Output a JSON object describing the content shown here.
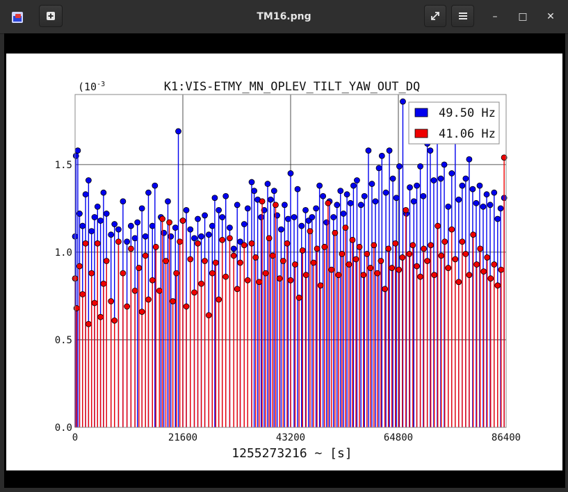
{
  "window": {
    "title": "TM16.png",
    "new_tab_icon": "plus-icon",
    "fullscreen_icon": "expand-icon",
    "menu_icon": "hamburger-icon",
    "minimize_icon": "minimize-icon",
    "maximize_icon": "maximize-icon",
    "close_icon": "close-icon",
    "minimize_glyph": "–",
    "maximize_glyph": "□",
    "close_glyph": "✕"
  },
  "chart_data": {
    "type": "scatter",
    "title": "K1:VIS-ETMY_MN_OPLEV_TILT_YAW_OUT_DQ",
    "xlabel": "1255273216 ~ [s]",
    "ylabel": "",
    "y_exponent_label": "(10",
    "y_exponent_sup": "-3",
    "xlim": [
      0,
      86400
    ],
    "ylim": [
      0,
      1.9
    ],
    "x_ticks": [
      "0",
      "21600",
      "43200",
      "64800",
      "86400"
    ],
    "x_tick_values": [
      0,
      21600,
      43200,
      64800,
      86400
    ],
    "y_ticks": [
      "0.0",
      "0.5",
      "1.0",
      "1.5"
    ],
    "y_tick_values": [
      0.0,
      0.5,
      1.0,
      1.5
    ],
    "grid": true,
    "legend_position": "top-right",
    "series": [
      {
        "name": "49.50 Hz",
        "color": "#0000ee",
        "style": "stem",
        "values": [
          [
            0,
            1.09
          ],
          [
            180,
            1.55
          ],
          [
            540,
            1.58
          ],
          [
            900,
            1.22
          ],
          [
            1500,
            1.15
          ],
          [
            2100,
            1.33
          ],
          [
            2700,
            1.41
          ],
          [
            3300,
            1.12
          ],
          [
            3900,
            1.2
          ],
          [
            4500,
            1.26
          ],
          [
            5100,
            1.18
          ],
          [
            5700,
            1.34
          ],
          [
            6300,
            1.22
          ],
          [
            7200,
            1.1
          ],
          [
            7900,
            1.16
          ],
          [
            8700,
            1.13
          ],
          [
            9600,
            1.29
          ],
          [
            10400,
            1.06
          ],
          [
            11200,
            1.15
          ],
          [
            12000,
            1.08
          ],
          [
            12500,
            1.17
          ],
          [
            13400,
            1.25
          ],
          [
            14100,
            1.09
          ],
          [
            14700,
            1.34
          ],
          [
            15500,
            1.15
          ],
          [
            16000,
            1.38
          ],
          [
            17200,
            1.2
          ],
          [
            17800,
            1.11
          ],
          [
            18600,
            1.29
          ],
          [
            19200,
            1.09
          ],
          [
            20100,
            1.14
          ],
          [
            20700,
            1.69
          ],
          [
            21600,
            1.18
          ],
          [
            22300,
            1.24
          ],
          [
            23100,
            1.13
          ],
          [
            23900,
            1.08
          ],
          [
            24600,
            1.19
          ],
          [
            25300,
            1.09
          ],
          [
            26000,
            1.21
          ],
          [
            26800,
            1.1
          ],
          [
            27500,
            1.15
          ],
          [
            28000,
            1.31
          ],
          [
            28800,
            1.24
          ],
          [
            29500,
            1.2
          ],
          [
            30200,
            1.32
          ],
          [
            31000,
            1.14
          ],
          [
            31800,
            1.02
          ],
          [
            32500,
            1.27
          ],
          [
            33100,
            1.06
          ],
          [
            33900,
            1.16
          ],
          [
            34600,
            1.25
          ],
          [
            35400,
            1.4
          ],
          [
            35900,
            1.35
          ],
          [
            36600,
            1.3
          ],
          [
            37300,
            1.2
          ],
          [
            37900,
            1.24
          ],
          [
            38600,
            1.39
          ],
          [
            39200,
            1.3
          ],
          [
            39900,
            1.35
          ],
          [
            40500,
            1.21
          ],
          [
            41300,
            1.13
          ],
          [
            42000,
            1.27
          ],
          [
            42700,
            1.19
          ],
          [
            43200,
            1.45
          ],
          [
            43900,
            1.2
          ],
          [
            44600,
            1.36
          ],
          [
            45400,
            1.15
          ],
          [
            46200,
            1.24
          ],
          [
            46800,
            1.18
          ],
          [
            47500,
            1.2
          ],
          [
            48300,
            1.25
          ],
          [
            49000,
            1.38
          ],
          [
            49700,
            1.32
          ],
          [
            50400,
            1.17
          ],
          [
            51000,
            1.29
          ],
          [
            51800,
            1.2
          ],
          [
            52500,
            1.27
          ],
          [
            53200,
            1.35
          ],
          [
            53800,
            1.22
          ],
          [
            54500,
            1.33
          ],
          [
            55200,
            1.28
          ],
          [
            55800,
            1.38
          ],
          [
            56500,
            1.41
          ],
          [
            57300,
            1.27
          ],
          [
            58000,
            1.32
          ],
          [
            58800,
            1.58
          ],
          [
            59500,
            1.39
          ],
          [
            60200,
            1.29
          ],
          [
            60900,
            1.48
          ],
          [
            61500,
            1.55
          ],
          [
            62300,
            1.34
          ],
          [
            63000,
            1.58
          ],
          [
            63700,
            1.42
          ],
          [
            64400,
            1.31
          ],
          [
            65000,
            1.49
          ],
          [
            65700,
            1.86
          ],
          [
            66400,
            1.22
          ],
          [
            67100,
            1.37
          ],
          [
            67900,
            1.29
          ],
          [
            68500,
            1.38
          ],
          [
            69200,
            1.49
          ],
          [
            69800,
            1.32
          ],
          [
            70600,
            1.62
          ],
          [
            71200,
            1.58
          ],
          [
            71900,
            1.41
          ],
          [
            72600,
            1.68
          ],
          [
            73300,
            1.42
          ],
          [
            74000,
            1.5
          ],
          [
            74800,
            1.26
          ],
          [
            75500,
            1.45
          ],
          [
            76200,
            1.71
          ],
          [
            76900,
            1.3
          ],
          [
            77600,
            1.38
          ],
          [
            78300,
            1.42
          ],
          [
            79000,
            1.53
          ],
          [
            79700,
            1.36
          ],
          [
            80400,
            1.28
          ],
          [
            81100,
            1.38
          ],
          [
            81800,
            1.26
          ],
          [
            82500,
            1.33
          ],
          [
            83200,
            1.27
          ],
          [
            84000,
            1.34
          ],
          [
            84700,
            1.19
          ],
          [
            85300,
            1.25
          ],
          [
            86000,
            1.31
          ]
        ]
      },
      {
        "name": "41.06 Hz",
        "color": "#ee0000",
        "style": "stem",
        "values": [
          [
            0,
            0.85
          ],
          [
            300,
            0.68
          ],
          [
            900,
            0.92
          ],
          [
            1500,
            0.76
          ],
          [
            2100,
            1.05
          ],
          [
            2700,
            0.59
          ],
          [
            3300,
            0.88
          ],
          [
            3900,
            0.71
          ],
          [
            4500,
            1.05
          ],
          [
            5100,
            0.63
          ],
          [
            5700,
            0.82
          ],
          [
            6300,
            0.95
          ],
          [
            7200,
            0.72
          ],
          [
            7900,
            0.61
          ],
          [
            8700,
            1.06
          ],
          [
            9600,
            0.88
          ],
          [
            10400,
            0.69
          ],
          [
            11200,
            1.02
          ],
          [
            12000,
            0.78
          ],
          [
            12800,
            0.91
          ],
          [
            13400,
            0.66
          ],
          [
            14100,
            0.98
          ],
          [
            14700,
            0.73
          ],
          [
            15500,
            0.84
          ],
          [
            16200,
            1.03
          ],
          [
            16900,
            0.78
          ],
          [
            17500,
            1.19
          ],
          [
            18200,
            0.95
          ],
          [
            18900,
            1.17
          ],
          [
            19600,
            0.72
          ],
          [
            20300,
            0.88
          ],
          [
            21000,
            1.06
          ],
          [
            21600,
            1.18
          ],
          [
            22300,
            0.69
          ],
          [
            23100,
            0.96
          ],
          [
            23900,
            0.77
          ],
          [
            24600,
            1.05
          ],
          [
            25300,
            0.82
          ],
          [
            26000,
            0.95
          ],
          [
            26800,
            0.64
          ],
          [
            27500,
            0.88
          ],
          [
            28200,
            0.94
          ],
          [
            28800,
            0.73
          ],
          [
            29500,
            1.07
          ],
          [
            30200,
            0.86
          ],
          [
            31000,
            1.08
          ],
          [
            31800,
            0.98
          ],
          [
            32500,
            0.79
          ],
          [
            33100,
            0.94
          ],
          [
            33900,
            1.04
          ],
          [
            34600,
            0.84
          ],
          [
            35400,
            1.05
          ],
          [
            36200,
            0.97
          ],
          [
            36900,
            0.83
          ],
          [
            37500,
            1.29
          ],
          [
            38200,
            0.88
          ],
          [
            38900,
            1.08
          ],
          [
            39600,
            0.98
          ],
          [
            40200,
            1.27
          ],
          [
            41000,
            0.85
          ],
          [
            41700,
            0.95
          ],
          [
            42500,
            1.05
          ],
          [
            43200,
            0.84
          ],
          [
            44100,
            0.93
          ],
          [
            44900,
            0.74
          ],
          [
            45600,
            1.01
          ],
          [
            46300,
            0.87
          ],
          [
            47100,
            1.12
          ],
          [
            47800,
            0.94
          ],
          [
            48500,
            1.02
          ],
          [
            49200,
            0.81
          ],
          [
            50000,
            1.03
          ],
          [
            50700,
            1.28
          ],
          [
            51400,
            0.9
          ],
          [
            52100,
            1.11
          ],
          [
            52800,
            0.87
          ],
          [
            53500,
            0.99
          ],
          [
            54200,
            1.14
          ],
          [
            54900,
            0.93
          ],
          [
            55600,
            1.07
          ],
          [
            56300,
            0.96
          ],
          [
            57000,
            1.03
          ],
          [
            57800,
            0.87
          ],
          [
            58500,
            0.99
          ],
          [
            59200,
            0.91
          ],
          [
            59900,
            1.04
          ],
          [
            60600,
            0.88
          ],
          [
            61300,
            0.95
          ],
          [
            62100,
            0.79
          ],
          [
            62800,
            1.02
          ],
          [
            63500,
            0.91
          ],
          [
            64200,
            1.05
          ],
          [
            64900,
            0.9
          ],
          [
            65600,
            0.97
          ],
          [
            66300,
            1.24
          ],
          [
            67000,
            0.99
          ],
          [
            67700,
            1.04
          ],
          [
            68500,
            0.92
          ],
          [
            69200,
            0.86
          ],
          [
            69900,
            1.02
          ],
          [
            70600,
            0.95
          ],
          [
            71300,
            1.04
          ],
          [
            72000,
            0.87
          ],
          [
            72700,
            1.15
          ],
          [
            73400,
            0.98
          ],
          [
            74100,
            1.06
          ],
          [
            74800,
            0.91
          ],
          [
            75500,
            1.13
          ],
          [
            76200,
            0.96
          ],
          [
            76900,
            0.83
          ],
          [
            77600,
            1.06
          ],
          [
            78300,
            0.99
          ],
          [
            79000,
            0.87
          ],
          [
            79800,
            1.1
          ],
          [
            80500,
            0.93
          ],
          [
            81200,
            1.02
          ],
          [
            81900,
            0.89
          ],
          [
            82600,
            0.97
          ],
          [
            83300,
            0.85
          ],
          [
            84000,
            0.93
          ],
          [
            84700,
            0.81
          ],
          [
            85400,
            0.9
          ],
          [
            86000,
            1.54
          ]
        ]
      }
    ]
  }
}
